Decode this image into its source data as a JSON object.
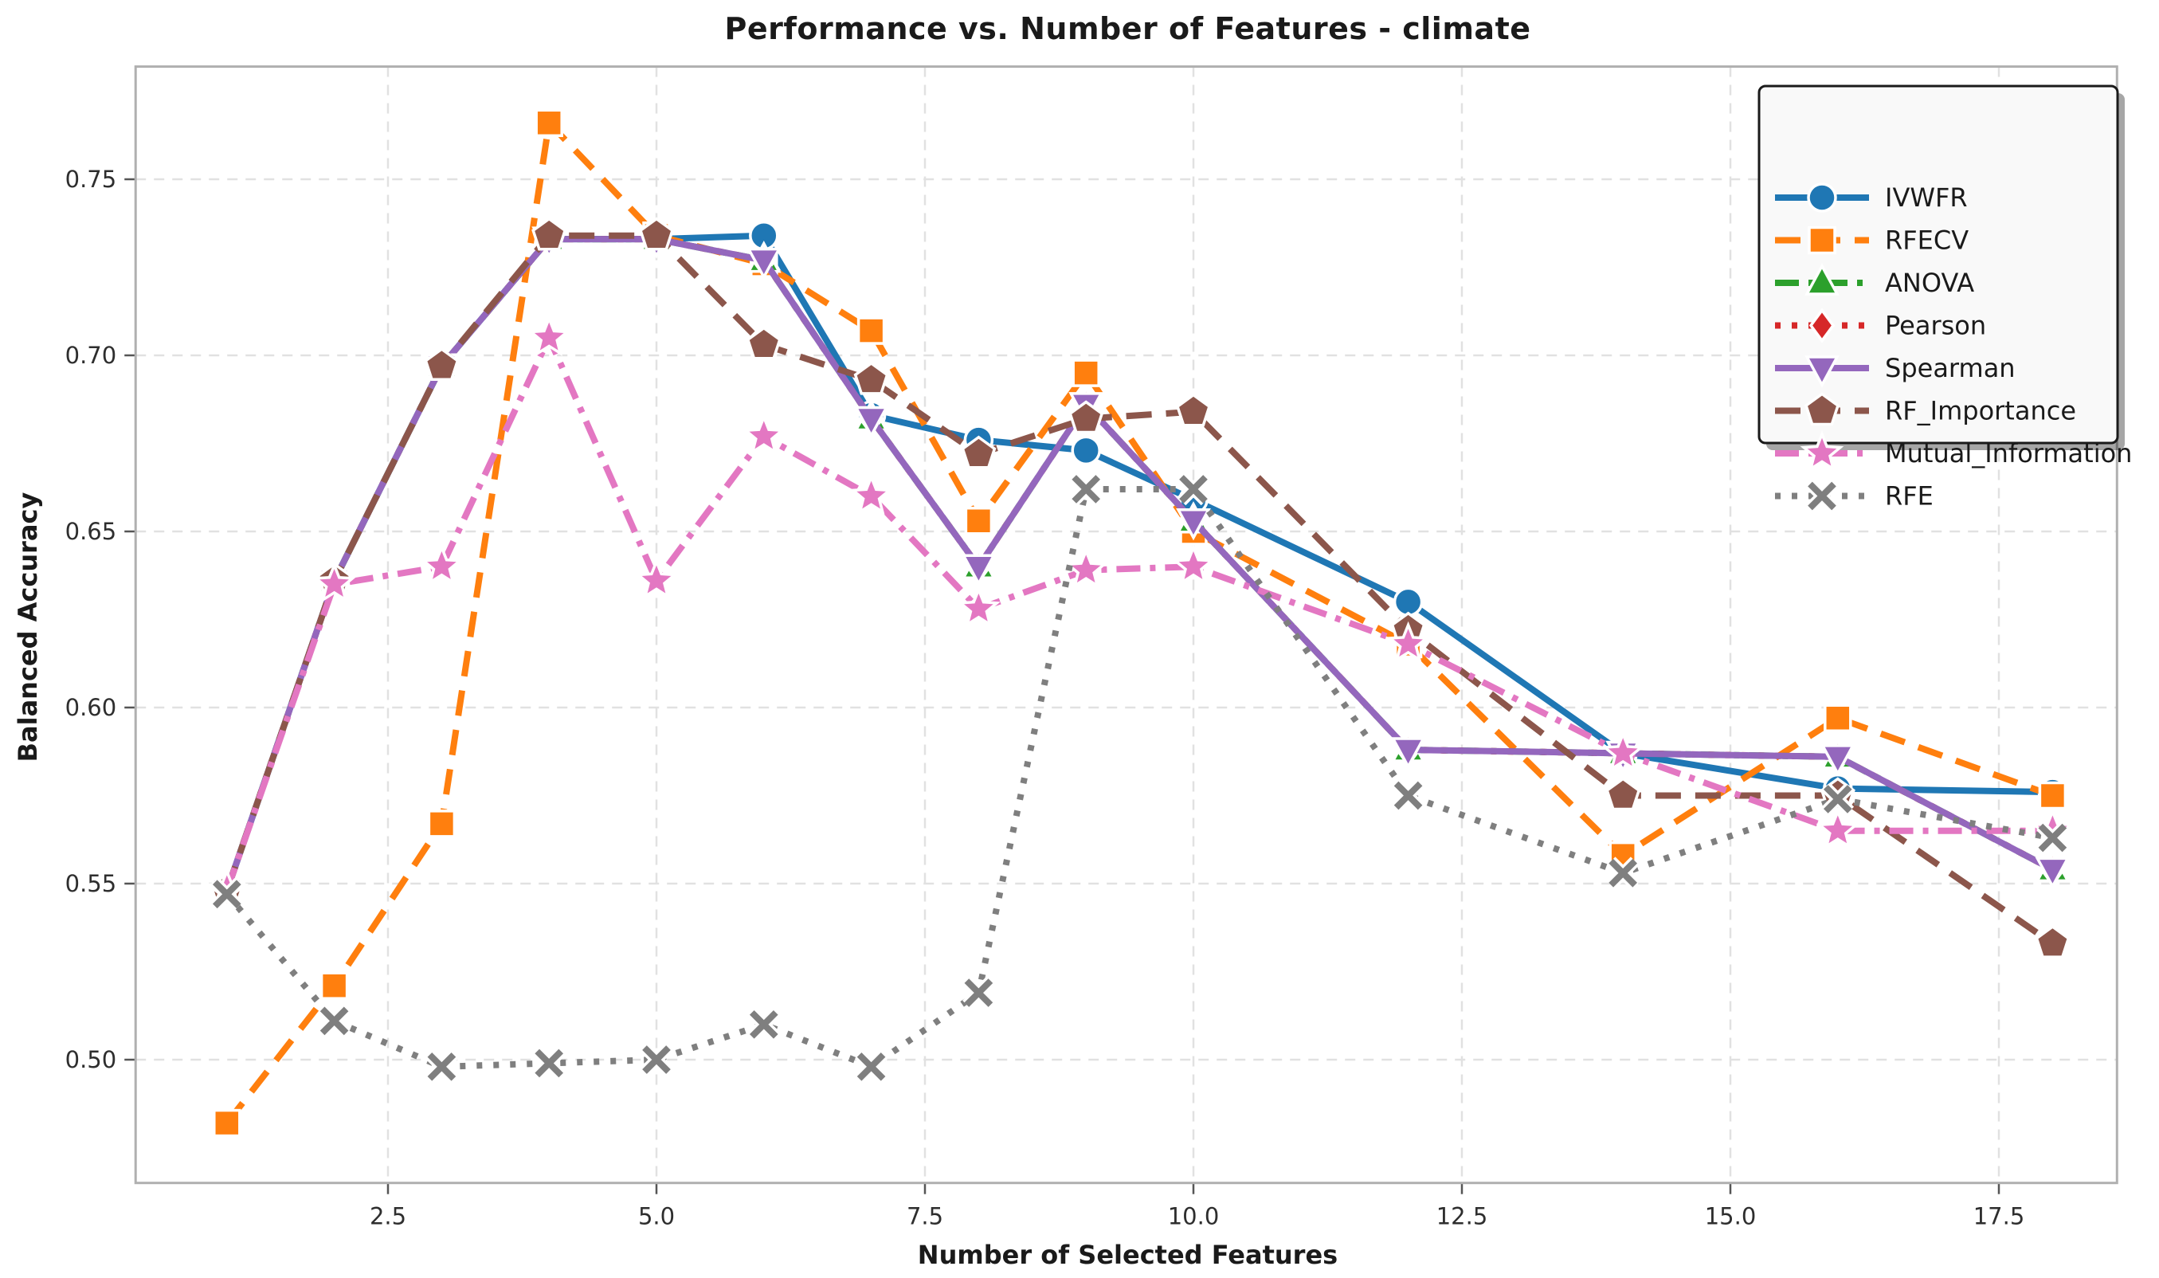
{
  "chart_data": {
    "type": "line",
    "title": "Performance vs. Number of Features - climate",
    "xlabel": "Number of Selected Features",
    "ylabel": "Balanced Accuracy",
    "x": [
      1,
      2,
      3,
      4,
      5,
      6,
      7,
      8,
      9,
      10,
      12,
      14,
      16,
      18
    ],
    "xlim": [
      0.15,
      18.6
    ],
    "ylim": [
      0.465,
      0.782
    ],
    "xticks": {
      "values": [
        2.5,
        5.0,
        7.5,
        10.0,
        12.5,
        15.0,
        17.5
      ],
      "labels": [
        "2.5",
        "5.0",
        "7.5",
        "10.0",
        "12.5",
        "15.0",
        "17.5"
      ]
    },
    "yticks": {
      "values": [
        0.5,
        0.55,
        0.6,
        0.65,
        0.7,
        0.75
      ],
      "labels": [
        "0.50",
        "0.55",
        "0.60",
        "0.65",
        "0.70",
        "0.75"
      ]
    },
    "grid": true,
    "legend_position": "upper right",
    "series": [
      {
        "name": "IVWFR",
        "color": "#1f77b4",
        "linestyle": "solid",
        "marker": "circle",
        "values": [
          0.548,
          0.636,
          0.697,
          0.733,
          0.733,
          0.734,
          0.683,
          0.676,
          0.673,
          0.659,
          0.63,
          0.587,
          0.577,
          0.576
        ]
      },
      {
        "name": "RFECV",
        "color": "#ff7f0e",
        "linestyle": "dashed",
        "marker": "square",
        "values": [
          0.482,
          0.521,
          0.567,
          0.766,
          0.734,
          0.726,
          0.707,
          0.653,
          0.695,
          0.65,
          0.618,
          0.558,
          0.597,
          0.575
        ]
      },
      {
        "name": "ANOVA",
        "color": "#2ca02c",
        "linestyle": "dashdot",
        "marker": "triangle-up",
        "values": [
          0.548,
          0.636,
          0.697,
          0.733,
          0.733,
          0.727,
          0.682,
          0.64,
          0.686,
          0.653,
          0.588,
          0.587,
          0.586,
          0.554
        ]
      },
      {
        "name": "Pearson",
        "color": "#d62728",
        "linestyle": "dotted",
        "marker": "diamond",
        "values": [
          0.548,
          0.636,
          0.697,
          0.733,
          0.733,
          0.727,
          0.682,
          0.64,
          0.686,
          0.653,
          0.588,
          0.587,
          0.586,
          0.554
        ]
      },
      {
        "name": "Spearman",
        "color": "#9467bd",
        "linestyle": "solid",
        "marker": "triangle-down",
        "values": [
          0.548,
          0.636,
          0.697,
          0.733,
          0.733,
          0.727,
          0.682,
          0.64,
          0.686,
          0.653,
          0.588,
          0.587,
          0.586,
          0.554
        ]
      },
      {
        "name": "RF_Importance",
        "color": "#8c564b",
        "linestyle": "dashed",
        "marker": "pentagon",
        "values": [
          0.548,
          0.636,
          0.697,
          0.734,
          0.734,
          0.703,
          0.693,
          0.672,
          0.682,
          0.684,
          0.622,
          0.575,
          0.575,
          0.533
        ]
      },
      {
        "name": "Mutual_Information",
        "color": "#e377c2",
        "linestyle": "dashdot",
        "marker": "star",
        "values": [
          0.548,
          0.635,
          0.64,
          0.705,
          0.636,
          0.677,
          0.66,
          0.628,
          0.639,
          0.64,
          0.618,
          0.587,
          0.565,
          0.565
        ]
      },
      {
        "name": "RFE",
        "color": "#7f7f7f",
        "linestyle": "dotted",
        "marker": "x",
        "values": [
          0.547,
          0.511,
          0.498,
          0.499,
          0.5,
          0.51,
          0.498,
          0.519,
          0.662,
          0.662,
          0.575,
          0.553,
          0.574,
          0.563
        ]
      }
    ]
  }
}
